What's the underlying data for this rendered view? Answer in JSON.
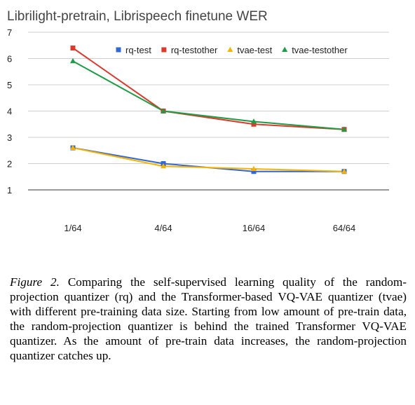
{
  "chart_data": {
    "type": "line",
    "title": "Librilight-pretrain, Librispeech finetune WER",
    "xlabel": "",
    "ylabel": "",
    "categories": [
      "1/64",
      "4/64",
      "16/64",
      "64/64"
    ],
    "ylim": [
      1,
      7
    ],
    "yticks": [
      1,
      2,
      3,
      4,
      5,
      6,
      7
    ],
    "grid": true,
    "legend_position": "top-right",
    "series": [
      {
        "name": "rq-test",
        "color": "#3366d6",
        "marker": "square",
        "values": [
          2.6,
          2.0,
          1.7,
          1.7
        ]
      },
      {
        "name": "rq-testother",
        "color": "#db3a2d",
        "marker": "square",
        "values": [
          6.4,
          4.0,
          3.5,
          3.3
        ]
      },
      {
        "name": "tvae-test",
        "color": "#f4b400",
        "marker": "triangle",
        "values": [
          2.6,
          1.9,
          1.8,
          1.7
        ]
      },
      {
        "name": "tvae-testother",
        "color": "#1e9c46",
        "marker": "triangle",
        "values": [
          5.9,
          4.0,
          3.6,
          3.3
        ]
      }
    ]
  },
  "caption": {
    "label": "Figure 2.",
    "text": "Comparing the self-supervised learning quality of the random-projection quantizer (rq) and the Transformer-based VQ-VAE quantizer (tvae) with different pre-training data size. Starting from low amount of pre-train data, the random-projection quantizer is behind the trained Transformer VQ-VAE quantizer.  As the amount of pre-train data increases, the random-projection quantizer catches up."
  }
}
